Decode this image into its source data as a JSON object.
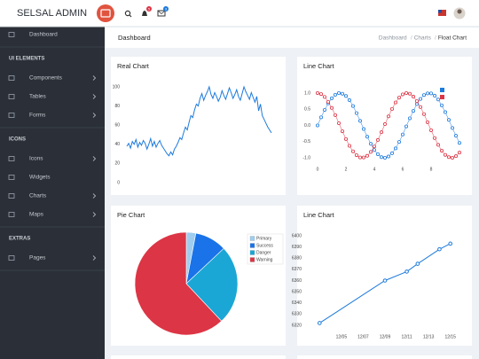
{
  "brand": "SELSAL ADMIN",
  "topbar": {
    "notification_badge": "5",
    "message_badge": "3"
  },
  "sidebar": {
    "items": [
      "Dashboard"
    ],
    "sections": [
      {
        "heading": "UI ELEMENTS",
        "items": [
          "Components",
          "Tables",
          "Forms"
        ]
      },
      {
        "heading": "ICONS",
        "items": [
          "Icons",
          "Widgets",
          "Charts",
          "Maps"
        ]
      },
      {
        "heading": "EXTRAS",
        "items": [
          "Pages"
        ]
      }
    ]
  },
  "page": {
    "title": "Dashboard",
    "breadcrumb": [
      "Dashboard",
      "Charts",
      "Float Chart"
    ]
  },
  "chart_data": [
    {
      "type": "line",
      "title": "Real Chart",
      "color": "#1e7bdc",
      "values": [
        38,
        41,
        36,
        43,
        40,
        45,
        37,
        42,
        39,
        44,
        41,
        35,
        40,
        46,
        38,
        43,
        37,
        41,
        44,
        39,
        36,
        33,
        30,
        28,
        32,
        29,
        35,
        38,
        42,
        47,
        45,
        52,
        58,
        55,
        63,
        70,
        68,
        76,
        82,
        80,
        88,
        93,
        86,
        91,
        95,
        100,
        92,
        88,
        94,
        90,
        85,
        89,
        96,
        91,
        87,
        93,
        99,
        94,
        88,
        92,
        97,
        90,
        86,
        93,
        100,
        95,
        91,
        87,
        94,
        89,
        84,
        90,
        75,
        82,
        70,
        66,
        62,
        58,
        55,
        52
      ],
      "ylim": [
        0,
        100
      ],
      "yticks": [
        0,
        20,
        40,
        60,
        80,
        100
      ]
    },
    {
      "type": "line",
      "title": "Line Chart",
      "markers": true,
      "legend": "top-right",
      "x": [
        0,
        0.25,
        0.5,
        0.75,
        1,
        1.25,
        1.5,
        1.75,
        2,
        2.25,
        2.5,
        2.75,
        3,
        3.25,
        3.5,
        3.75,
        4,
        4.25,
        4.5,
        4.75,
        5,
        5.25,
        5.5,
        5.75,
        6,
        6.25,
        6.5,
        6.75,
        7,
        7.25,
        7.5,
        7.75,
        8,
        8.25,
        8.5,
        8.75,
        9,
        9.25,
        9.5,
        9.75,
        10
      ],
      "series": [
        {
          "color": "#1e7bdc",
          "values": [
            0,
            0.25,
            0.48,
            0.68,
            0.84,
            0.95,
            1.0,
            0.98,
            0.91,
            0.78,
            0.6,
            0.38,
            0.14,
            -0.11,
            -0.35,
            -0.57,
            -0.76,
            -0.89,
            -0.98,
            -1.0,
            -0.96,
            -0.86,
            -0.71,
            -0.51,
            -0.28,
            -0.03,
            0.22,
            0.45,
            0.66,
            0.82,
            0.94,
            0.99,
            0.99,
            0.92,
            0.8,
            0.62,
            0.41,
            0.17,
            -0.08,
            -0.32,
            -0.54
          ]
        },
        {
          "color": "#dc3545",
          "values": [
            1,
            0.97,
            0.88,
            0.73,
            0.54,
            0.32,
            0.07,
            -0.18,
            -0.42,
            -0.63,
            -0.8,
            -0.92,
            -0.99,
            -0.99,
            -0.94,
            -0.82,
            -0.65,
            -0.45,
            -0.21,
            0.04,
            0.28,
            0.51,
            0.71,
            0.86,
            0.96,
            1.0,
            0.98,
            0.89,
            0.75,
            0.57,
            0.35,
            0.1,
            -0.15,
            -0.39,
            -0.6,
            -0.78,
            -0.91,
            -0.98,
            -1.0,
            -0.95,
            -0.84
          ]
        }
      ],
      "xlim": [
        0,
        10
      ],
      "xticks": [
        0,
        2,
        4,
        6,
        8
      ],
      "ylim": [
        -1,
        1
      ],
      "yticks": [
        {
          "value": -1,
          "label": "-1.0"
        },
        {
          "value": -0.5,
          "label": "-0.5"
        },
        {
          "value": 0,
          "label": "0.0"
        },
        {
          "value": 0.5,
          "label": "0.5"
        },
        {
          "value": 1,
          "label": "1.0"
        }
      ]
    },
    {
      "type": "pie",
      "title": "Pie Chart",
      "legend": "right",
      "categories": [
        "Primary",
        "Success",
        "Danger",
        "Warning"
      ],
      "values": [
        3,
        10,
        25,
        62
      ],
      "colors": [
        "#9fcdf0",
        "#1a73e8",
        "#1aa7d6",
        "#dc3545"
      ]
    },
    {
      "type": "line",
      "title": "Line Chart",
      "color": "#1e7bdc",
      "markers": true,
      "x": [
        "12/03",
        "12/09",
        "12/11",
        "12/12",
        "12/14",
        "12/15"
      ],
      "values": [
        6322,
        6360,
        6368,
        6375,
        6388,
        6393
      ],
      "xlim": [
        "12/02",
        "12/16"
      ],
      "xticks": [
        "12/05",
        "12/07",
        "12/09",
        "12/11",
        "12/13",
        "12/15"
      ],
      "ylim": [
        6320,
        6400
      ],
      "yticks": [
        6320,
        6330,
        6340,
        6350,
        6360,
        6370,
        6380,
        6390,
        6400
      ]
    }
  ]
}
